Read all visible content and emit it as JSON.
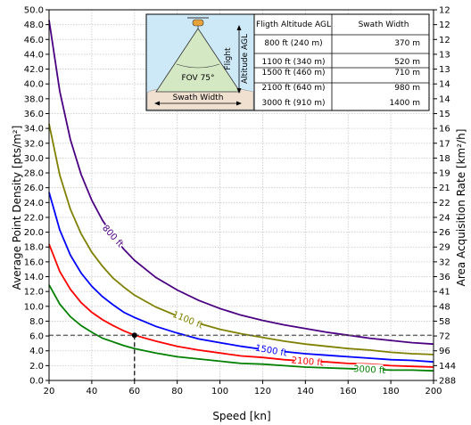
{
  "chart_data": {
    "type": "line",
    "xlabel": "Speed [kn]",
    "ylabel": "Average Point Density [pts/m²]",
    "y2label": "Area Acquisition Rate [km²/h]",
    "xlim": [
      20,
      200
    ],
    "ylim": [
      0,
      50
    ],
    "grid": true,
    "x_ticks": [
      "20",
      "40",
      "60",
      "80",
      "100",
      "120",
      "140",
      "160",
      "180",
      "200"
    ],
    "y_ticks": [
      "0.0",
      "2.0",
      "4.0",
      "6.0",
      "8.0",
      "10.0",
      "12.0",
      "14.0",
      "16.0",
      "18.0",
      "20.0",
      "22.0",
      "24.0",
      "26.0",
      "28.0",
      "30.0",
      "32.0",
      "34.0",
      "36.0",
      "38.0",
      "40.0",
      "42.0",
      "44.0",
      "46.0",
      "48.0",
      "50.0"
    ],
    "y2_ticks": [
      "288",
      "144",
      "96",
      "72",
      "58",
      "48",
      "41",
      "36",
      "32",
      "29",
      "26",
      "24",
      "22",
      "21",
      "19",
      "18",
      "17",
      "16",
      "15",
      "14",
      "14",
      "13",
      "13",
      "12",
      "12",
      "12"
    ],
    "series": [
      {
        "name": "800 ft",
        "color": "#4b0082",
        "label_at": 50,
        "label_rotate": 48,
        "x": [
          20,
          25,
          30,
          35,
          40,
          45,
          50,
          55,
          60,
          70,
          80,
          90,
          100,
          110,
          120,
          130,
          140,
          150,
          160,
          170,
          180,
          190,
          200
        ],
        "y": [
          48.6,
          39.0,
          32.5,
          27.8,
          24.3,
          21.6,
          19.5,
          17.7,
          16.2,
          13.9,
          12.2,
          10.8,
          9.7,
          8.8,
          8.1,
          7.5,
          7.0,
          6.5,
          6.1,
          5.7,
          5.4,
          5.1,
          4.9
        ]
      },
      {
        "name": "1100 ft",
        "color": "#808000",
        "label_at": 85,
        "label_rotate": 22,
        "x": [
          20,
          25,
          30,
          35,
          40,
          45,
          50,
          55,
          60,
          70,
          80,
          90,
          100,
          110,
          120,
          130,
          140,
          150,
          160,
          170,
          180,
          190,
          200
        ],
        "y": [
          34.6,
          27.7,
          23.1,
          19.8,
          17.3,
          15.4,
          13.8,
          12.6,
          11.5,
          9.9,
          8.7,
          7.7,
          6.9,
          6.3,
          5.8,
          5.3,
          4.9,
          4.6,
          4.3,
          4.1,
          3.8,
          3.6,
          3.5
        ]
      },
      {
        "name": "1500 ft",
        "color": "#0000ff",
        "label_at": 124,
        "label_rotate": 10,
        "x": [
          20,
          25,
          30,
          35,
          40,
          45,
          50,
          55,
          60,
          70,
          80,
          90,
          100,
          110,
          120,
          130,
          140,
          150,
          160,
          170,
          180,
          190,
          200
        ],
        "y": [
          25.4,
          20.3,
          16.9,
          14.5,
          12.7,
          11.3,
          10.2,
          9.2,
          8.5,
          7.3,
          6.4,
          5.6,
          5.1,
          4.6,
          4.2,
          3.9,
          3.6,
          3.4,
          3.2,
          3.0,
          2.8,
          2.7,
          2.5
        ]
      },
      {
        "name": "2100 ft",
        "color": "#ff0000",
        "label_at": 141,
        "label_rotate": 5,
        "x": [
          20,
          25,
          30,
          35,
          40,
          45,
          50,
          55,
          60,
          70,
          80,
          90,
          100,
          110,
          120,
          130,
          140,
          150,
          160,
          170,
          180,
          190,
          200
        ],
        "y": [
          18.4,
          14.7,
          12.3,
          10.5,
          9.2,
          8.2,
          7.4,
          6.7,
          6.1,
          5.3,
          4.6,
          4.1,
          3.7,
          3.3,
          3.1,
          2.8,
          2.6,
          2.5,
          2.3,
          2.2,
          2.0,
          1.9,
          1.8
        ]
      },
      {
        "name": "3000 ft",
        "color": "#008000",
        "label_at": 170,
        "label_rotate": 3,
        "x": [
          20,
          25,
          30,
          35,
          40,
          45,
          50,
          55,
          60,
          70,
          80,
          90,
          100,
          110,
          120,
          130,
          140,
          150,
          160,
          170,
          180,
          190,
          200
        ],
        "y": [
          12.9,
          10.3,
          8.6,
          7.4,
          6.5,
          5.7,
          5.2,
          4.7,
          4.3,
          3.7,
          3.2,
          2.9,
          2.6,
          2.3,
          2.2,
          2.0,
          1.8,
          1.7,
          1.6,
          1.5,
          1.4,
          1.4,
          1.3
        ]
      }
    ],
    "marker": {
      "x": 60,
      "y": 6.1
    },
    "reference_line_y": 6.1,
    "table": {
      "headers": [
        "Fligth Altitude AGL",
        "Swath Width"
      ],
      "rows": [
        [
          "800 ft (240 m)",
          "370 m"
        ],
        [
          "1100 ft (340 m)",
          "520 m"
        ],
        [
          "1500 ft (460 m)",
          "710 m"
        ],
        [
          "2100 ft (640 m)",
          "980 m"
        ],
        [
          "3000 ft (910 m)",
          "1400 m"
        ]
      ]
    },
    "schematic": {
      "fov_label": "FOV 75°",
      "altitude_label_line1": "Flight",
      "altitude_label_line2": "Altitude AGL",
      "swath_label": "Swath Width",
      "sky_color": "#cde9f7",
      "cone_color": "#d4e8c4",
      "ground_color": "#f0e0d0"
    }
  }
}
